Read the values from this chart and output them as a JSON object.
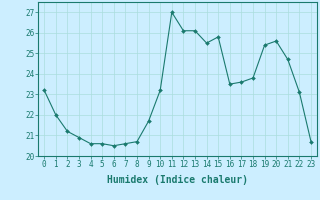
{
  "x": [
    0,
    1,
    2,
    3,
    4,
    5,
    6,
    7,
    8,
    9,
    10,
    11,
    12,
    13,
    14,
    15,
    16,
    17,
    18,
    19,
    20,
    21,
    22,
    23
  ],
  "y": [
    23.2,
    22.0,
    21.2,
    20.9,
    20.6,
    20.6,
    20.5,
    20.6,
    20.7,
    21.7,
    23.2,
    27.0,
    26.1,
    26.1,
    25.5,
    25.8,
    23.5,
    23.6,
    23.8,
    25.4,
    25.6,
    24.7,
    23.1,
    20.7
  ],
  "line_color": "#1a7a6e",
  "marker": "D",
  "marker_size": 2.0,
  "bg_color": "#cceeff",
  "grid_color": "#aadddd",
  "xlabel": "Humidex (Indice chaleur)",
  "ylabel": "",
  "xlim": [
    -0.5,
    23.5
  ],
  "ylim": [
    20,
    27.5
  ],
  "yticks": [
    20,
    21,
    22,
    23,
    24,
    25,
    26,
    27
  ],
  "xticks": [
    0,
    1,
    2,
    3,
    4,
    5,
    6,
    7,
    8,
    9,
    10,
    11,
    12,
    13,
    14,
    15,
    16,
    17,
    18,
    19,
    20,
    21,
    22,
    23
  ],
  "tick_color": "#1a7a6e",
  "axis_color": "#1a7a6e",
  "font_color": "#1a7a6e",
  "font_size": 5.5,
  "label_fontsize": 7.0
}
